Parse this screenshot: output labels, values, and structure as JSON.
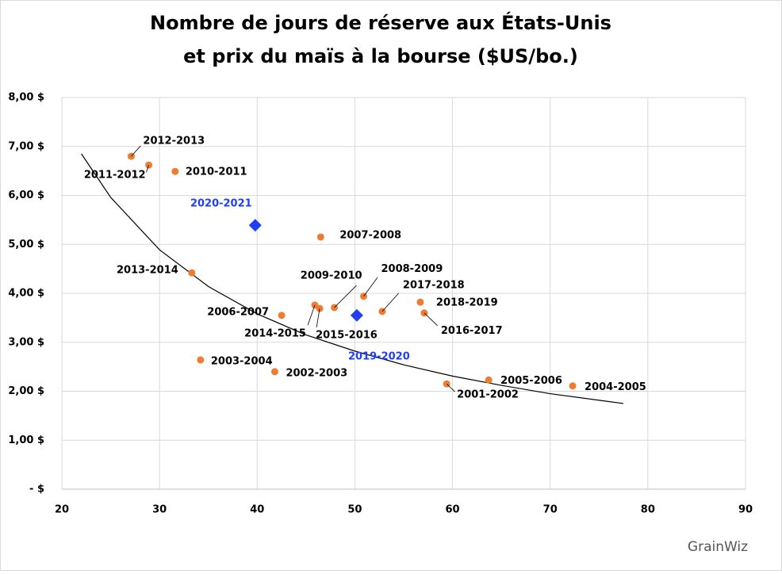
{
  "chart_data": {
    "type": "scatter",
    "title": "Nombre de jours de réserve aux États-Unis",
    "subtitle": "et prix du maïs à la bourse ($US/bo.)",
    "xlim": [
      20,
      90
    ],
    "xticks": [
      20,
      30,
      40,
      50,
      60,
      70,
      80,
      90
    ],
    "ylim": [
      0,
      8
    ],
    "yticks": [
      {
        "value": 0,
        "label": "-  $"
      },
      {
        "value": 1,
        "label": "1,00 $"
      },
      {
        "value": 2,
        "label": "2,00 $"
      },
      {
        "value": 3,
        "label": "3,00 $"
      },
      {
        "value": 4,
        "label": "4,00 $"
      },
      {
        "value": 5,
        "label": "5,00 $"
      },
      {
        "value": 6,
        "label": "6,00 $"
      },
      {
        "value": 7,
        "label": "7,00 $"
      },
      {
        "value": 8,
        "label": "8,00 $"
      }
    ],
    "grid": true,
    "series": [
      {
        "color": "#ed7d31",
        "marker": "circle",
        "label_color": "#000000",
        "labels": [
          "2012-2013",
          "2011-2012",
          "2010-2011",
          "2007-2008",
          "2013-2014",
          "2008-2009",
          "2009-2010",
          "2017-2018",
          "2018-2019",
          "2016-2017",
          "2006-2007",
          "2014-2015",
          "2015-2016",
          "2003-2004",
          "2002-2003",
          "2001-2002",
          "2005-2006",
          "2004-2005"
        ],
        "x": [
          27.1,
          28.9,
          31.6,
          46.5,
          33.3,
          50.9,
          47.9,
          52.8,
          56.7,
          57.1,
          42.5,
          45.9,
          46.4,
          34.2,
          41.8,
          59.4,
          63.7,
          72.3
        ],
        "values": [
          6.8,
          6.62,
          6.49,
          5.15,
          4.42,
          3.94,
          3.71,
          3.63,
          3.82,
          3.6,
          3.55,
          3.76,
          3.69,
          2.64,
          2.4,
          2.15,
          2.23,
          2.11
        ]
      },
      {
        "color": "#1f3ff5",
        "marker": "diamond",
        "label_color": "#1f3ff5",
        "labels": [
          "2020-2021",
          "2019-2020"
        ],
        "x": [
          39.8,
          50.2
        ],
        "values": [
          5.39,
          3.55
        ]
      }
    ],
    "trendline": {
      "color": "#000000",
      "x": [
        22,
        25,
        30,
        35,
        40,
        45,
        50,
        55,
        60,
        65,
        70,
        77.5
      ],
      "values": [
        6.85,
        5.96,
        4.89,
        4.14,
        3.58,
        3.15,
        2.82,
        2.54,
        2.31,
        2.12,
        1.95,
        1.75
      ]
    },
    "logo": "GrainWiz"
  }
}
